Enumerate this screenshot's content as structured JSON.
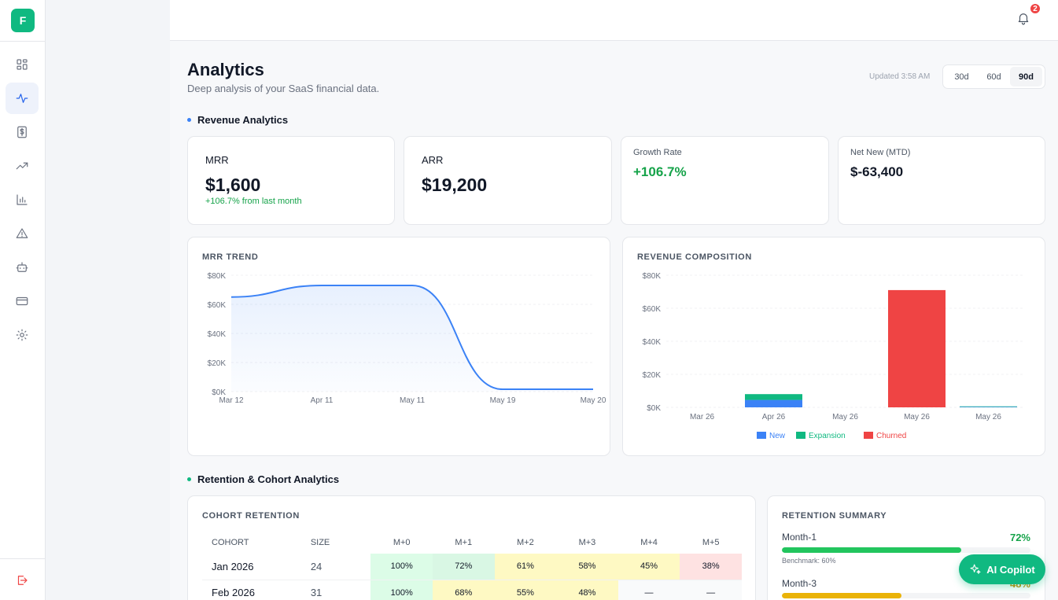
{
  "brand": {
    "logo_letter": "F",
    "accent": "#10b981"
  },
  "sidebar": {
    "items": [
      {
        "name": "dashboard",
        "icon": "grid-icon",
        "active": false
      },
      {
        "name": "analytics",
        "icon": "activity-icon",
        "active": true
      },
      {
        "name": "billing",
        "icon": "dollar-icon",
        "active": false
      },
      {
        "name": "growth",
        "icon": "trending-up-icon",
        "active": false
      },
      {
        "name": "reports",
        "icon": "bar-chart-icon",
        "active": false
      },
      {
        "name": "alerts",
        "icon": "alert-triangle-icon",
        "active": false
      },
      {
        "name": "automation",
        "icon": "bot-icon",
        "active": false
      },
      {
        "name": "payments",
        "icon": "credit-card-icon",
        "active": false
      },
      {
        "name": "settings",
        "icon": "gear-icon",
        "active": false
      }
    ],
    "logout_icon": "logout-icon"
  },
  "topbar": {
    "notification_count": "2"
  },
  "header": {
    "title": "Analytics",
    "subtitle": "Deep analysis of your SaaS financial data.",
    "updated": "Updated 3:58 AM",
    "ranges": [
      "30d",
      "60d",
      "90d"
    ],
    "active_range": "90d"
  },
  "sections": {
    "revenue": "Revenue Analytics",
    "retention": "Retention & Cohort Analytics"
  },
  "kpis": {
    "mrr": {
      "label": "MRR",
      "value": "$1,600",
      "delta": "+106.7% from last month"
    },
    "arr": {
      "label": "ARR",
      "value": "$19,200"
    },
    "growth": {
      "label": "Growth Rate",
      "value": "+106.7%"
    },
    "net_new": {
      "label": "Net New (MTD)",
      "value": "$-63,400"
    }
  },
  "chart_data": [
    {
      "type": "area",
      "title": "MRR TREND",
      "x": [
        "Mar 12",
        "Apr 11",
        "May 11",
        "May 19",
        "May 20"
      ],
      "y_ticks": [
        "$0K",
        "$20K",
        "$40K",
        "$60K",
        "$80K"
      ],
      "ylim": [
        0,
        80000
      ],
      "series": [
        {
          "values": [
            65000,
            73000,
            73000,
            1600,
            1600
          ]
        }
      ],
      "grid": true
    },
    {
      "type": "bar",
      "title": "REVENUE COMPOSITION",
      "categories": [
        "Mar 26",
        "Apr 26",
        "May 26",
        "May 26",
        "May 26"
      ],
      "y_ticks": [
        "$0K",
        "$20K",
        "$40K",
        "$60K",
        "$80K"
      ],
      "ylim": [
        0,
        80000
      ],
      "stacked": true,
      "series": [
        {
          "name": "New",
          "color": "#3b82f6",
          "values": [
            0,
            4500,
            0,
            0,
            300
          ]
        },
        {
          "name": "Expansion",
          "color": "#10b981",
          "values": [
            0,
            3500,
            0,
            0,
            300
          ]
        },
        {
          "name": "Churned",
          "color": "#ef4444",
          "values": [
            0,
            0,
            0,
            71000,
            0
          ]
        }
      ],
      "legend": "bottom-center"
    }
  ],
  "cohort": {
    "title": "COHORT RETENTION",
    "headers": [
      "COHORT",
      "SIZE",
      "M+0",
      "M+1",
      "M+2",
      "M+3",
      "M+4",
      "M+5"
    ],
    "rows": [
      {
        "cohort": "Jan 2026",
        "size": "24",
        "cells": [
          "100%",
          "72%",
          "61%",
          "58%",
          "45%",
          "38%"
        ],
        "tones": [
          "g1",
          "g2",
          "y1",
          "y1",
          "y1",
          "r1"
        ]
      },
      {
        "cohort": "Feb 2026",
        "size": "31",
        "cells": [
          "100%",
          "68%",
          "55%",
          "48%",
          "—",
          "—"
        ],
        "tones": [
          "g1",
          "y1",
          "y1",
          "y1",
          "empty",
          "empty"
        ]
      }
    ]
  },
  "retention_summary": {
    "title": "RETENTION SUMMARY",
    "items": [
      {
        "label": "Month-1",
        "pct": "72%",
        "fill": 0.72,
        "color": "#22c55e",
        "benchmark": "Benchmark: 60%"
      },
      {
        "label": "Month-3",
        "pct": "48%",
        "fill": 0.48,
        "color": "#eab308"
      }
    ]
  },
  "copilot": {
    "label": "AI Copilot"
  }
}
